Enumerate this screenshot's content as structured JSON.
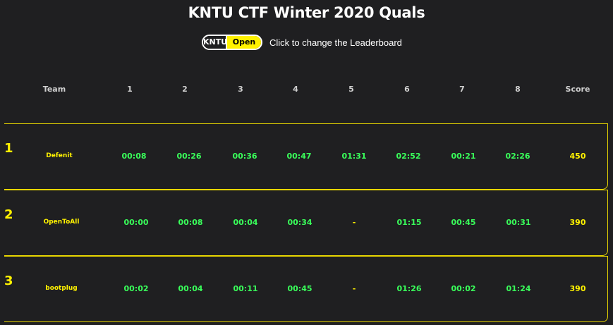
{
  "title": "KNTU CTF Winter 2020 Quals",
  "toggle": {
    "options": [
      "KNTU",
      "Open"
    ],
    "active": "Open",
    "hint": "Click to change the Leaderboard"
  },
  "columns": [
    "Team",
    "1",
    "2",
    "3",
    "4",
    "5",
    "6",
    "7",
    "8",
    "Score"
  ],
  "rows": [
    {
      "rank": "1",
      "team": "Defenit",
      "times": [
        "00:08",
        "00:26",
        "00:36",
        "00:47",
        "01:31",
        "02:52",
        "00:21",
        "02:26"
      ],
      "score": "450"
    },
    {
      "rank": "2",
      "team": "OpenToAll",
      "times": [
        "00:00",
        "00:08",
        "00:04",
        "00:34",
        "-",
        "01:15",
        "00:45",
        "00:31"
      ],
      "score": "390"
    },
    {
      "rank": "3",
      "team": "bootplug",
      "times": [
        "00:02",
        "00:04",
        "00:11",
        "00:45",
        "-",
        "01:26",
        "00:02",
        "01:24"
      ],
      "score": "390"
    }
  ],
  "colors": {
    "background": "#1f1f21",
    "accent": "#fff200",
    "time": "#39ff5a",
    "border": "#e8d600"
  }
}
